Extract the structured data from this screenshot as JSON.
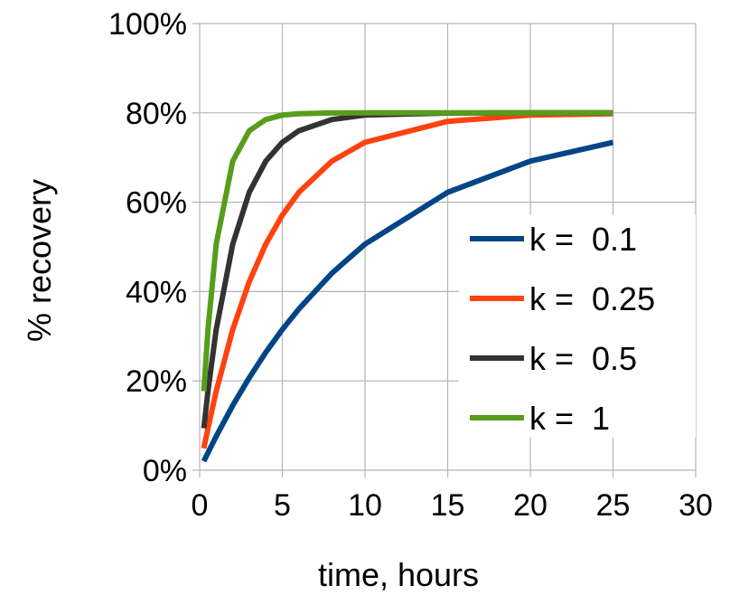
{
  "chart_data": {
    "type": "line",
    "title": "",
    "xlabel": "time, hours",
    "ylabel": "% recovery",
    "xlim": [
      0,
      30
    ],
    "ylim": [
      0,
      100
    ],
    "x_ticks": [
      0,
      5,
      10,
      15,
      20,
      25,
      30
    ],
    "x_tick_labels": [
      "0",
      "5",
      "10",
      "15",
      "20",
      "25",
      "30"
    ],
    "y_ticks": [
      0,
      20,
      40,
      60,
      80,
      100
    ],
    "y_tick_labels": [
      "0%",
      "20%",
      "40%",
      "60%",
      "80%",
      "100%"
    ],
    "grid": true,
    "legend_position": "right",
    "x": [
      0.25,
      0.5,
      1,
      2,
      3,
      4,
      5,
      6,
      8,
      10,
      15,
      20,
      25
    ],
    "series": [
      {
        "name": "k =  0.1",
        "color": "#004586",
        "values": [
          2.0,
          3.9,
          7.6,
          14.5,
          20.7,
          26.4,
          31.5,
          36.1,
          44.1,
          50.6,
          62.2,
          69.2,
          73.4
        ]
      },
      {
        "name": "k =  0.25",
        "color": "#ff420e",
        "values": [
          4.9,
          9.4,
          17.7,
          31.5,
          42.2,
          50.6,
          57.1,
          62.2,
          69.2,
          73.4,
          78.1,
          79.5,
          79.8
        ]
      },
      {
        "name": "k =  0.5",
        "color": "#333333",
        "values": [
          9.4,
          17.7,
          31.5,
          50.6,
          62.2,
          69.2,
          73.4,
          76.0,
          78.5,
          79.5,
          79.96,
          80.0,
          80.0
        ]
      },
      {
        "name": "k =  1",
        "color": "#579d1c",
        "values": [
          17.7,
          31.5,
          50.6,
          69.2,
          76.0,
          78.5,
          79.5,
          79.8,
          79.97,
          80.0,
          80.0,
          80.0,
          80.0
        ]
      }
    ]
  }
}
